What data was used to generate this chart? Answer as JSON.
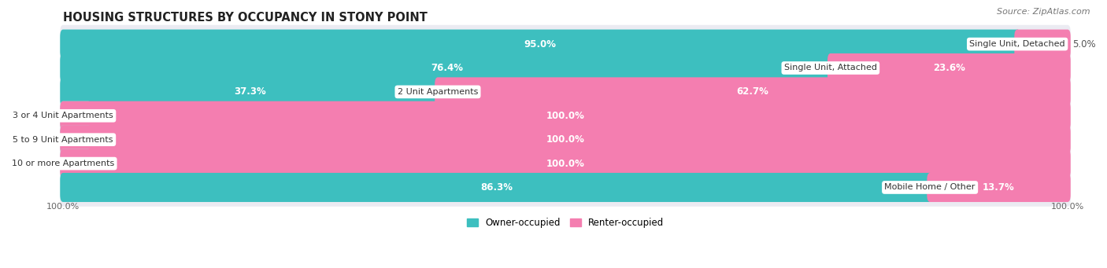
{
  "title": "HOUSING STRUCTURES BY OCCUPANCY IN STONY POINT",
  "source": "Source: ZipAtlas.com",
  "categories": [
    "Single Unit, Detached",
    "Single Unit, Attached",
    "2 Unit Apartments",
    "3 or 4 Unit Apartments",
    "5 to 9 Unit Apartments",
    "10 or more Apartments",
    "Mobile Home / Other"
  ],
  "owner_pct": [
    95.0,
    76.4,
    37.3,
    0.0,
    0.0,
    0.0,
    86.3
  ],
  "renter_pct": [
    5.0,
    23.6,
    62.7,
    100.0,
    100.0,
    100.0,
    13.7
  ],
  "owner_color": "#3dbfbf",
  "renter_color": "#f47eb0",
  "owner_color_light": "#a8e4e4",
  "renter_color_light": "#f9c0d8",
  "bg_row_color": "#ebebf2",
  "bar_height": 0.62,
  "title_fontsize": 10.5,
  "label_fontsize": 8.5,
  "tick_fontsize": 8,
  "source_fontsize": 8,
  "owner_label_threshold": 10,
  "renter_label_threshold": 10
}
